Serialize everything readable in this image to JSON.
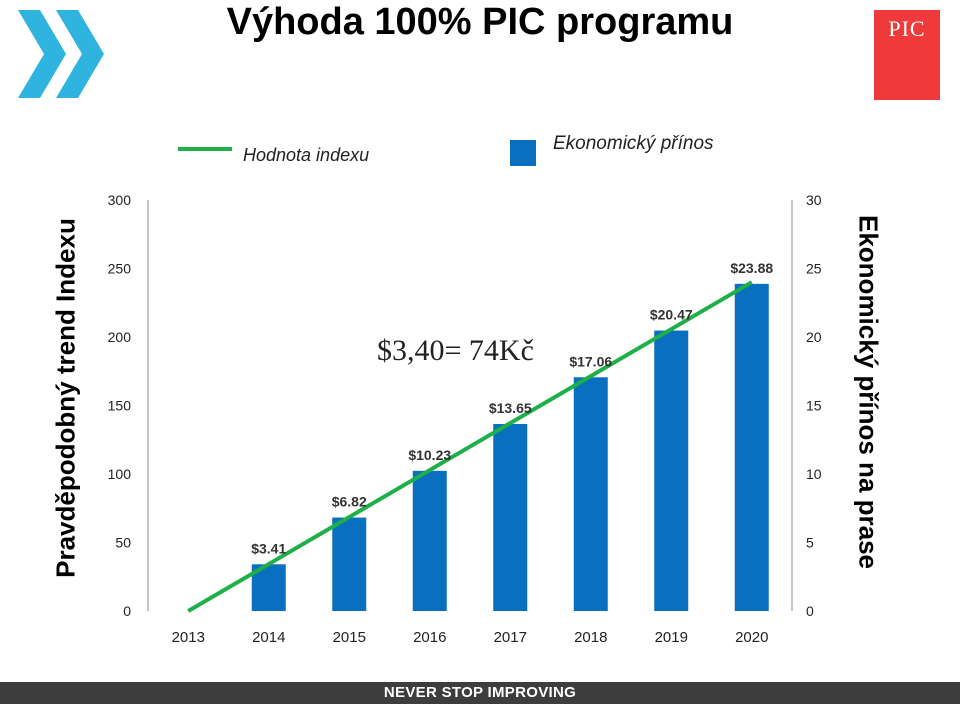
{
  "title": "Výhoda 100% PIC programu",
  "logo_text": "PIC",
  "footer": "NEVER STOP IMPROVING",
  "annotation": "$3,40= 74Kč",
  "colors": {
    "bar": "#0b6fc0",
    "line": "#1db049",
    "logo": "#ee3a3a",
    "chevron": "#2fb4e0",
    "footer": "#3d3d3d"
  },
  "chart_data": {
    "type": "bar",
    "categories": [
      "2013",
      "2014",
      "2015",
      "2016",
      "2017",
      "2018",
      "2019",
      "2020"
    ],
    "series": [
      {
        "name": "Ekonomický přínos",
        "type": "bar",
        "axis": "right",
        "values": [
          null,
          3.41,
          6.82,
          10.23,
          13.65,
          17.06,
          20.47,
          23.88
        ],
        "labels": [
          "",
          "$3.41",
          "$6.82",
          "$10.23",
          "$13.65",
          "$17.06",
          "$20.47",
          "$23.88"
        ]
      },
      {
        "name": "Hodnota indexu",
        "type": "line",
        "axis": "left",
        "x": [
          2013,
          2020
        ],
        "values": [
          0,
          240
        ]
      }
    ],
    "ylabel_left": "Pravděpodobný trend Indexu",
    "ylabel_right": "Ekonomický přínos na prase",
    "ylim_left": [
      0,
      300
    ],
    "yticks_left": [
      "0",
      "50",
      "100",
      "150",
      "200",
      "250",
      "300"
    ],
    "ylim_right": [
      0,
      30
    ],
    "yticks_right": [
      "0",
      "5",
      "10",
      "15",
      "20",
      "25",
      "30"
    ],
    "grid": false,
    "legend": "top"
  }
}
